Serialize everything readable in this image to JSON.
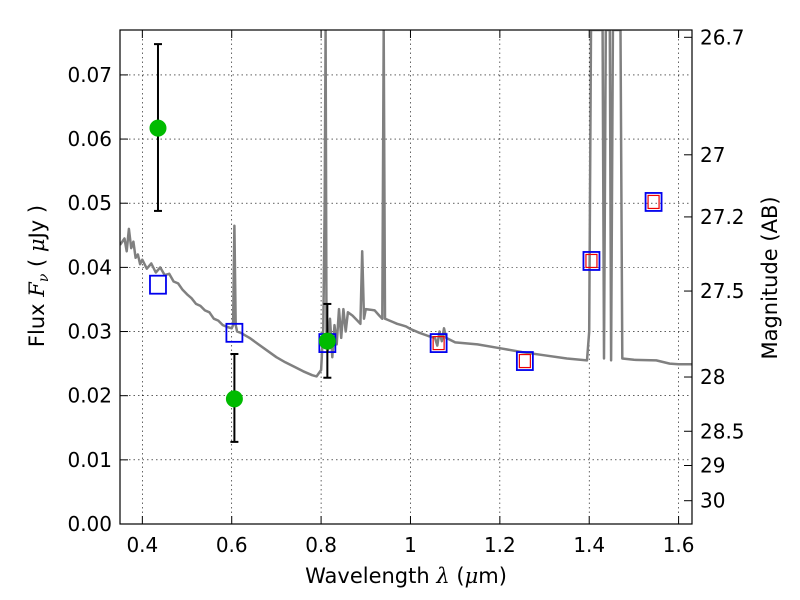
{
  "chart_data": {
    "type": "scatter",
    "xlabel_prefix": "Wavelength",
    "xlabel_symbol": "λ",
    "xlabel_unit_open": "(",
    "xlabel_unit_symbol": "μ",
    "xlabel_unit_close": "m)",
    "ylabel_prefix": "Flux",
    "ylabel_symbol": "F",
    "ylabel_subscript": "ν",
    "ylabel_unit_open": "(",
    "ylabel_unit_symbol": "μ",
    "ylabel_unit_close": "Jy )",
    "y2label": "Magnitude (AB)",
    "xlim": [
      0.35,
      1.63
    ],
    "ylim": [
      0.0,
      0.077
    ],
    "x_ticks": [
      0.4,
      0.6,
      0.8,
      1.0,
      1.2,
      1.4,
      1.6
    ],
    "x_tick_labels": [
      "0.4",
      "0.6",
      "0.8",
      "1",
      "1.2",
      "1.4",
      "1.6"
    ],
    "y_ticks": [
      0.0,
      0.01,
      0.02,
      0.03,
      0.04,
      0.05,
      0.06,
      0.07
    ],
    "y_tick_labels": [
      "0.00",
      "0.01",
      "0.02",
      "0.03",
      "0.04",
      "0.05",
      "0.06",
      "0.07"
    ],
    "mag_ticks": [
      26.7,
      27,
      27.2,
      27.5,
      28,
      28.5,
      29,
      30
    ],
    "mag_tick_labels": [
      "26.7",
      "27",
      "27.2",
      "27.5",
      "28",
      "28.5",
      "29",
      "30"
    ],
    "grid": true,
    "series": [
      {
        "name": "observed",
        "color": "#00bb00",
        "points": [
          {
            "x": 0.435,
            "y": 0.0617,
            "yerr_low": 0.0488,
            "yerr_high": 0.0748
          },
          {
            "x": 0.606,
            "y": 0.0195,
            "yerr_low": 0.0128,
            "yerr_high": 0.0265
          },
          {
            "x": 0.814,
            "y": 0.0285,
            "yerr_low": 0.0228,
            "yerr_high": 0.0343
          }
        ]
      },
      {
        "name": "model_bands",
        "color": "#0000ee",
        "points": [
          {
            "x": 0.435,
            "y": 0.0373
          },
          {
            "x": 0.606,
            "y": 0.0298
          },
          {
            "x": 0.814,
            "y": 0.0282
          },
          {
            "x": 1.063,
            "y": 0.0282
          },
          {
            "x": 1.256,
            "y": 0.0254
          },
          {
            "x": 1.405,
            "y": 0.041
          },
          {
            "x": 1.544,
            "y": 0.0502
          }
        ]
      },
      {
        "name": "model_bands_inner",
        "color": "#ee0000",
        "points": [
          {
            "x": 1.063,
            "y": 0.0282
          },
          {
            "x": 1.256,
            "y": 0.0254
          },
          {
            "x": 1.405,
            "y": 0.041
          },
          {
            "x": 1.544,
            "y": 0.0502
          }
        ]
      },
      {
        "name": "sed_template",
        "color": "#808080",
        "line": [
          [
            0.35,
            0.0435
          ],
          [
            0.36,
            0.0445
          ],
          [
            0.365,
            0.0425
          ],
          [
            0.37,
            0.046
          ],
          [
            0.375,
            0.043
          ],
          [
            0.38,
            0.044
          ],
          [
            0.385,
            0.0415
          ],
          [
            0.39,
            0.042
          ],
          [
            0.395,
            0.0405
          ],
          [
            0.4,
            0.0412
          ],
          [
            0.41,
            0.0398
          ],
          [
            0.42,
            0.0406
          ],
          [
            0.43,
            0.0392
          ],
          [
            0.44,
            0.04
          ],
          [
            0.45,
            0.0388
          ],
          [
            0.46,
            0.039
          ],
          [
            0.47,
            0.0378
          ],
          [
            0.48,
            0.0375
          ],
          [
            0.49,
            0.0365
          ],
          [
            0.5,
            0.0358
          ],
          [
            0.51,
            0.0352
          ],
          [
            0.52,
            0.0343
          ],
          [
            0.53,
            0.034
          ],
          [
            0.54,
            0.0333
          ],
          [
            0.55,
            0.033
          ],
          [
            0.56,
            0.032
          ],
          [
            0.57,
            0.0317
          ],
          [
            0.58,
            0.031
          ],
          [
            0.59,
            0.0307
          ],
          [
            0.6,
            0.0305
          ],
          [
            0.603,
            0.031
          ],
          [
            0.606,
            0.0465
          ],
          [
            0.609,
            0.031
          ],
          [
            0.612,
            0.03
          ],
          [
            0.62,
            0.0298
          ],
          [
            0.64,
            0.029
          ],
          [
            0.66,
            0.028
          ],
          [
            0.68,
            0.027
          ],
          [
            0.7,
            0.026
          ],
          [
            0.72,
            0.0252
          ],
          [
            0.74,
            0.0245
          ],
          [
            0.76,
            0.0238
          ],
          [
            0.78,
            0.0232
          ],
          [
            0.79,
            0.023
          ],
          [
            0.8,
            0.024
          ],
          [
            0.805,
            0.0305
          ],
          [
            0.808,
            0.05
          ],
          [
            0.81,
            0.077
          ],
          [
            0.812,
            0.03
          ],
          [
            0.815,
            0.027
          ],
          [
            0.82,
            0.032
          ],
          [
            0.825,
            0.026
          ],
          [
            0.83,
            0.031
          ],
          [
            0.835,
            0.028
          ],
          [
            0.84,
            0.0335
          ],
          [
            0.845,
            0.029
          ],
          [
            0.85,
            0.0335
          ],
          [
            0.855,
            0.03
          ],
          [
            0.86,
            0.033
          ],
          [
            0.87,
            0.0325
          ],
          [
            0.88,
            0.0318
          ],
          [
            0.888,
            0.0312
          ],
          [
            0.892,
            0.0425
          ],
          [
            0.896,
            0.032
          ],
          [
            0.9,
            0.0335
          ],
          [
            0.91,
            0.0334
          ],
          [
            0.92,
            0.0333
          ],
          [
            0.93,
            0.0325
          ],
          [
            0.937,
            0.032
          ],
          [
            0.94,
            0.077
          ],
          [
            0.943,
            0.032
          ],
          [
            0.95,
            0.0318
          ],
          [
            0.96,
            0.0315
          ],
          [
            0.97,
            0.0312
          ],
          [
            0.98,
            0.031
          ],
          [
            0.99,
            0.0308
          ],
          [
            1.0,
            0.0304
          ],
          [
            1.02,
            0.0298
          ],
          [
            1.04,
            0.0293
          ],
          [
            1.055,
            0.029
          ],
          [
            1.06,
            0.0278
          ],
          [
            1.065,
            0.03
          ],
          [
            1.07,
            0.0285
          ],
          [
            1.075,
            0.0305
          ],
          [
            1.08,
            0.029
          ],
          [
            1.1,
            0.0283
          ],
          [
            1.15,
            0.028
          ],
          [
            1.2,
            0.0274
          ],
          [
            1.25,
            0.0268
          ],
          [
            1.3,
            0.0263
          ],
          [
            1.35,
            0.0258
          ],
          [
            1.38,
            0.0256
          ],
          [
            1.395,
            0.0255
          ],
          [
            1.4,
            0.03
          ],
          [
            1.404,
            0.077
          ],
          [
            1.43,
            0.077
          ],
          [
            1.433,
            0.0258
          ],
          [
            1.437,
            0.077
          ],
          [
            1.446,
            0.077
          ],
          [
            1.449,
            0.0255
          ],
          [
            1.453,
            0.077
          ],
          [
            1.47,
            0.077
          ],
          [
            1.474,
            0.0258
          ],
          [
            1.5,
            0.0256
          ],
          [
            1.55,
            0.0255
          ],
          [
            1.58,
            0.025
          ],
          [
            1.6,
            0.0249
          ],
          [
            1.63,
            0.0249
          ]
        ]
      }
    ]
  }
}
